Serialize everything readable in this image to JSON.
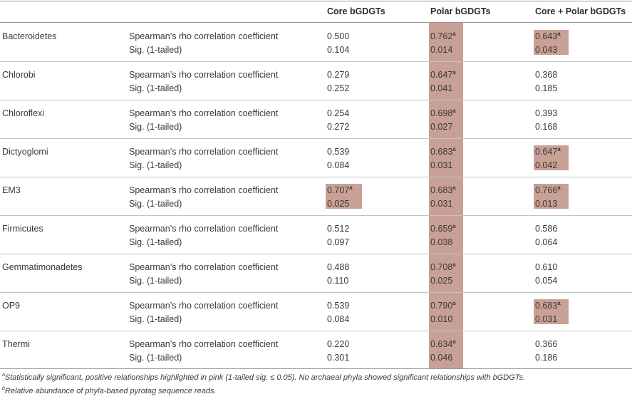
{
  "chart_data": {
    "type": "table",
    "columns": [
      "",
      "",
      "Core bGDGTs",
      "Polar bGDGTs",
      "Core + Polar bGDGTs"
    ],
    "row_labels": [
      "Spearman’s rho correlation coefficient",
      "Sig. (1-tailed)"
    ],
    "highlight_color": "#c9a095",
    "rows": [
      {
        "phylum": "Bacteroidetes",
        "core": [
          "0.500",
          "0.104"
        ],
        "polar": [
          "0.762",
          "0.014"
        ],
        "combined": [
          "0.643",
          "0.043"
        ],
        "sig": [
          false,
          true,
          true
        ]
      },
      {
        "phylum": "Chlorobi",
        "core": [
          "0.279",
          "0.252"
        ],
        "polar": [
          "0.647",
          "0.041"
        ],
        "combined": [
          "0.368",
          "0.185"
        ],
        "sig": [
          false,
          true,
          false
        ]
      },
      {
        "phylum": "Chloroflexi",
        "core": [
          "0.254",
          "0.272"
        ],
        "polar": [
          "0.698",
          "0.027"
        ],
        "combined": [
          "0.393",
          "0.168"
        ],
        "sig": [
          false,
          true,
          false
        ]
      },
      {
        "phylum": "Dictyoglomi",
        "core": [
          "0.539",
          "0.084"
        ],
        "polar": [
          "0.683",
          "0.031"
        ],
        "combined": [
          "0.647",
          "0.042"
        ],
        "sig": [
          false,
          true,
          true
        ]
      },
      {
        "phylum": "EM3",
        "core": [
          "0.707",
          "0.025"
        ],
        "polar": [
          "0.683",
          "0.031"
        ],
        "combined": [
          "0.766",
          "0.013"
        ],
        "sig": [
          true,
          true,
          true
        ]
      },
      {
        "phylum": "Firmicutes",
        "core": [
          "0.512",
          "0.097"
        ],
        "polar": [
          "0.659",
          "0.038"
        ],
        "combined": [
          "0.586",
          "0.064"
        ],
        "sig": [
          false,
          true,
          false
        ]
      },
      {
        "phylum": "Gemmatimonadetes",
        "core": [
          "0.488",
          "0.110"
        ],
        "polar": [
          "0.708",
          "0.025"
        ],
        "combined": [
          "0.610",
          "0.054"
        ],
        "sig": [
          false,
          true,
          false
        ]
      },
      {
        "phylum": "OP9",
        "core": [
          "0.539",
          "0.084"
        ],
        "polar": [
          "0.790",
          "0.010"
        ],
        "combined": [
          "0.683",
          "0.031"
        ],
        "sig": [
          false,
          true,
          true
        ]
      },
      {
        "phylum": "Thermi",
        "core": [
          "0.220",
          "0.301"
        ],
        "polar": [
          "0.634",
          "0.046"
        ],
        "combined": [
          "0.366",
          "0.186"
        ],
        "sig": [
          false,
          true,
          false
        ]
      }
    ],
    "sig_marker": "a",
    "footnotes": [
      {
        "mark": "a",
        "text": "Statistically significant, positive relationships highlighted in pink (1-tailed sig. ≤ 0.05). No archaeal phyla showed significant relationships with bGDGTs."
      },
      {
        "mark": "b",
        "text": "Relative abundance of phyla-based pyrotag sequence reads."
      }
    ]
  }
}
